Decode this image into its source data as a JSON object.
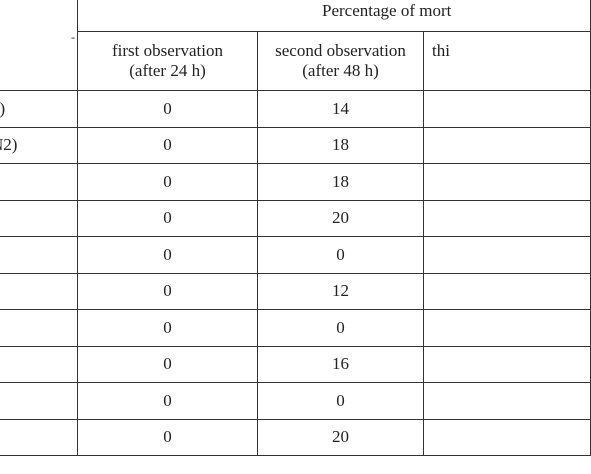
{
  "header": {
    "group_title": "Percentage of mort",
    "corner_mark": "-",
    "columns": [
      {
        "line1": "first observation",
        "line2": "(after 24 h)"
      },
      {
        "line1": "second observation",
        "line2": "(after 48 h)"
      },
      {
        "line1": "thi",
        "line2": ""
      }
    ]
  },
  "rows": [
    {
      "label_bold": "1",
      "label": ")",
      "first": "0",
      "second": "14"
    },
    {
      "label_bold": "",
      "label": "N2)",
      "first": "0",
      "second": "18"
    },
    {
      "label_bold": "",
      "label": "",
      "first": "0",
      "second": "18"
    },
    {
      "label_bold": "",
      "label": "",
      "first": "0",
      "second": "20"
    },
    {
      "label_bold": "",
      "label": "",
      "first": "0",
      "second": "0"
    },
    {
      "label_bold": "",
      "label": "",
      "first": "0",
      "second": "12"
    },
    {
      "label_bold": "",
      "label": "",
      "first": "0",
      "second": "0"
    },
    {
      "label_bold": "",
      "label": "",
      "first": "0",
      "second": "16"
    },
    {
      "label_bold": "",
      "label": "",
      "first": "0",
      "second": "0"
    },
    {
      "label_bold": "",
      "label": "",
      "first": "0",
      "second": "20"
    }
  ]
}
